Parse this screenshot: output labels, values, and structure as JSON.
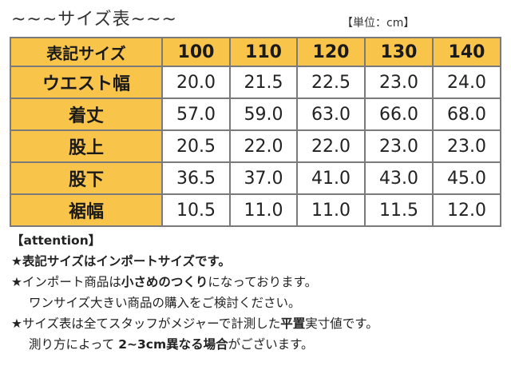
{
  "header": {
    "title": "~~~サイズ表~~~",
    "unit": "【単位：cm】"
  },
  "table": {
    "corner": "表記サイズ",
    "columns": [
      "100",
      "110",
      "120",
      "130",
      "140"
    ],
    "rows": [
      {
        "label": "ウエスト幅",
        "values": [
          "20.0",
          "21.5",
          "22.5",
          "23.0",
          "24.0"
        ]
      },
      {
        "label": "着丈",
        "values": [
          "57.0",
          "59.0",
          "63.0",
          "66.0",
          "68.0"
        ]
      },
      {
        "label": "股上",
        "values": [
          "20.5",
          "22.0",
          "22.0",
          "23.0",
          "23.0"
        ]
      },
      {
        "label": "股下",
        "values": [
          "36.5",
          "37.0",
          "41.0",
          "43.0",
          "45.0"
        ]
      },
      {
        "label": "裾幅",
        "values": [
          "10.5",
          "11.0",
          "11.0",
          "11.5",
          "12.0"
        ]
      }
    ]
  },
  "notes": {
    "heading": "【attention】",
    "n1": "★表記サイズはインポートサイズです。",
    "n2_a": "★インポート商品は",
    "n2_b": "小さめのつくり",
    "n2_c": "になっております。",
    "n2_line2": "ワンサイズ大きい商品の購入をご検討ください。",
    "n3_a": "★サイズ表は全てスタッフがメジャーで計測した",
    "n3_b": "平置",
    "n3_c": "実寸値です。",
    "n3_line2_a": "測り方によって ",
    "n3_line2_b": "2~3cm異なる場合",
    "n3_line2_c": "がございます。"
  }
}
